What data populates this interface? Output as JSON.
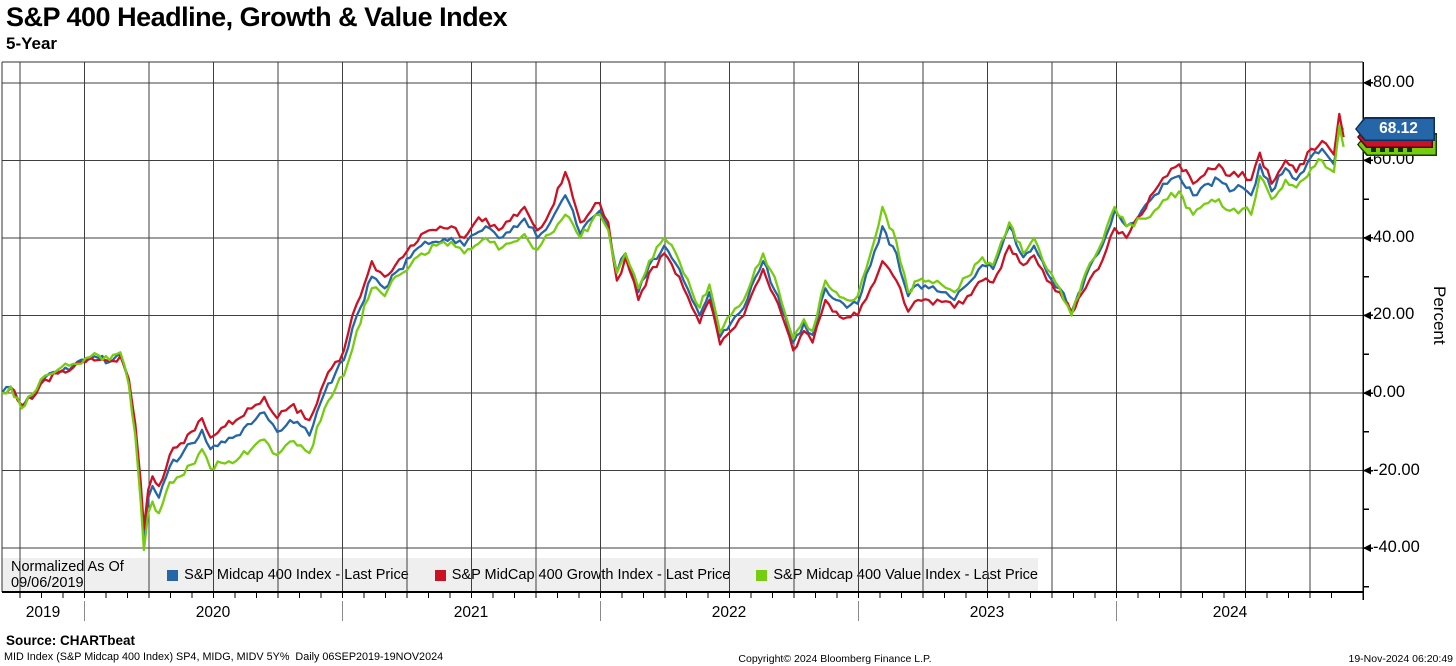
{
  "title": "S&P 400 Headline, Growth & Value Index",
  "subtitle": "5-Year",
  "legend": {
    "normalized_label": "Normalized As Of 09/06/2019",
    "items": [
      {
        "name": "midcap-400",
        "label": "S&P Midcap 400 Index - Last Price",
        "color": "#2566a8"
      },
      {
        "name": "midcap-400-growth",
        "label": "S&P MidCap 400 Growth Index - Last Price",
        "color": "#cb1124"
      },
      {
        "name": "midcap-400-value",
        "label": "S&P Midcap 400 Value Index - Last Price",
        "color": "#76cc0e"
      }
    ]
  },
  "y_axis": {
    "title": "Percent",
    "major_ticks": [
      {
        "value": 80,
        "label": "80.00"
      },
      {
        "value": 60,
        "label": "60.00"
      },
      {
        "value": 40,
        "label": "40.00"
      },
      {
        "value": 20,
        "label": "20.00"
      },
      {
        "value": 0,
        "label": "0.00"
      },
      {
        "value": -20,
        "label": "-20.00"
      },
      {
        "value": -40,
        "label": "-40.00"
      }
    ],
    "minor_tick_values": [
      70,
      50,
      30,
      10,
      -10,
      -30,
      -50
    ],
    "last_price_tag": {
      "label": "68.12",
      "fill": "#2566a8",
      "border": "#0c2f5e",
      "text_color": "#ffffff"
    },
    "obscured_tags": [
      {
        "name": "growth-last-price-tag",
        "fill": "#cb1124",
        "border": "#5c0612"
      },
      {
        "name": "value-last-price-tag",
        "fill": "#76cc0e",
        "border": "#1d3a00"
      }
    ]
  },
  "x_axis": {
    "year_labels": [
      "2019",
      "2020",
      "2021",
      "2022",
      "2023",
      "2024"
    ]
  },
  "footer": {
    "source": "Source: CHARTbeat",
    "details": "MID Index (S&P Midcap 400 Index) SP4, MIDG, MIDV 5Y%  Daily 06SEP2019-19NOV2024",
    "copyright": "Copyright© 2024 Bloomberg Finance L.P.",
    "timestamp": "19-Nov-2024 06:20:49"
  },
  "chart_data": {
    "type": "line",
    "title": "S&P 400 Headline, Growth & Value Index (5-Year)",
    "x_unit": "months since 2019-09-06",
    "x_range_dates": [
      "2019-09-06",
      "2024-11-19"
    ],
    "ylabel": "Percent",
    "ylim": [
      -51,
      85
    ],
    "grid": {
      "vertical": "quarterly",
      "horizontal_step": 20
    },
    "legend_position": "bottom-left",
    "t_months": [
      0,
      0.4,
      0.9,
      1.4,
      2,
      2.6,
      3.3,
      3.9,
      4.5,
      5,
      5.5,
      5.9,
      6.2,
      6.45,
      6.6,
      6.8,
      7,
      7.3,
      7.8,
      8.3,
      8.8,
      9.3,
      9.7,
      10.2,
      10.9,
      11.6,
      12.2,
      12.8,
      13.4,
      13.9,
      14.3,
      15,
      15.5,
      15.9,
      16.5,
      17.2,
      17.8,
      18.3,
      19,
      19.5,
      20.2,
      20.9,
      21.5,
      22,
      22.5,
      23.1,
      23.8,
      24.3,
      24.9,
      25.5,
      26.2,
      26.9,
      27.4,
      27.8,
      28.2,
      28.6,
      29,
      29.6,
      30.1,
      30.8,
      31.5,
      32.1,
      32.45,
      32.9,
      33.4,
      33.9,
      34.5,
      35.4,
      36.1,
      36.8,
      37.3,
      37.7,
      38.3,
      38.8,
      39.3,
      39.8,
      40.4,
      40.95,
      41.6,
      42.15,
      42.6,
      43.1,
      43.7,
      44.3,
      44.9,
      45.6,
      46.1,
      46.85,
      47.5,
      48,
      48.6,
      49.2,
      49.75,
      50.4,
      51,
      51.75,
      52.3,
      53,
      53.6,
      54.2,
      54.75,
      55.4,
      56.1,
      56.6,
      57.1,
      57.7,
      58.1,
      58.5,
      59.05,
      59.7,
      60.2,
      60.9,
      61.4,
      61.95,
      62.2,
      62.4
    ],
    "series": [
      {
        "name": "S&P Midcap 400 Index - Last Price",
        "color": "#2566a8",
        "last_price": 68.12,
        "values": [
          0,
          1.5,
          -3.5,
          -1,
          4,
          5.5,
          7,
          8.5,
          9,
          8,
          10,
          3,
          -9,
          -25,
          -37,
          -27,
          -24,
          -27,
          -19,
          -16.5,
          -13,
          -9.5,
          -14.5,
          -12.5,
          -11,
          -8,
          -5,
          -10,
          -7,
          -8.5,
          -11,
          0,
          5,
          8.5,
          20,
          30,
          27,
          31,
          35,
          38,
          39,
          40,
          38,
          41,
          43,
          40,
          43,
          45,
          40,
          44,
          51,
          41,
          45,
          47,
          43,
          31,
          36,
          26,
          33,
          38,
          32,
          24,
          20,
          26,
          14.5,
          18,
          22,
          34,
          25,
          13,
          18,
          15,
          27,
          24,
          22,
          23,
          33,
          43,
          36,
          25,
          28,
          27,
          26,
          24,
          28,
          33,
          32,
          43,
          35,
          38,
          31,
          27,
          21,
          30,
          36,
          47,
          43,
          47,
          51,
          54,
          56,
          51,
          54,
          55,
          52,
          53,
          51,
          59,
          52,
          58,
          55,
          61,
          63,
          59,
          68,
          68.12
        ]
      },
      {
        "name": "S&P MidCap 400 Growth Index - Last Price",
        "color": "#cb1124",
        "values": [
          0,
          1.3,
          -3,
          -1.5,
          3.5,
          5,
          6.5,
          8,
          8.5,
          8.2,
          9.5,
          3.5,
          -8,
          -23,
          -35,
          -25,
          -21.5,
          -24,
          -16,
          -13,
          -10,
          -6.5,
          -11.5,
          -9,
          -7,
          -4,
          -1,
          -6.5,
          -3.5,
          -4.5,
          -7,
          3,
          8,
          11,
          23,
          34,
          30,
          33,
          38,
          41,
          42,
          43,
          40,
          44,
          45,
          42,
          46,
          48,
          42,
          47,
          57,
          44,
          47,
          49,
          44,
          29,
          35,
          24,
          31,
          36,
          30,
          22,
          18,
          24,
          12.5,
          16,
          20,
          32,
          23,
          11,
          16,
          13,
          24,
          21,
          19.5,
          20,
          27,
          34,
          29,
          21,
          24,
          24,
          23.5,
          22,
          25,
          29,
          28.5,
          38,
          33,
          35.5,
          29,
          26,
          20.5,
          27,
          32,
          42.5,
          40,
          46,
          52,
          56,
          59,
          54,
          58,
          59,
          56,
          57,
          55,
          62,
          54,
          60,
          57,
          63,
          65,
          61.5,
          72,
          66
        ]
      },
      {
        "name": "S&P Midcap 400 Value Index - Last Price",
        "color": "#76cc0e",
        "values": [
          0,
          1.7,
          -4,
          -0.5,
          4.5,
          6,
          7.5,
          9,
          9.7,
          8.5,
          10.5,
          2,
          -11,
          -28,
          -40.5,
          -31,
          -28,
          -31,
          -23,
          -21.5,
          -18.5,
          -14.5,
          -19.5,
          -18,
          -17.5,
          -14.5,
          -12,
          -16,
          -12.5,
          -13.5,
          -15.5,
          -4,
          1,
          4.5,
          16,
          27,
          25,
          30,
          33,
          36,
          38,
          39,
          36,
          38,
          40,
          37,
          39,
          41,
          37,
          41,
          46,
          40,
          44,
          46,
          42,
          31,
          36,
          27,
          34,
          40,
          34,
          26,
          22,
          28,
          15.5,
          20,
          24,
          36,
          27,
          14,
          19,
          16,
          29,
          26,
          24,
          25,
          36,
          48,
          39,
          26,
          29,
          29,
          28,
          26,
          30,
          35,
          33,
          44,
          36,
          40,
          32,
          27,
          20,
          31,
          37,
          48,
          43,
          45,
          47,
          50,
          52,
          46,
          49,
          50,
          47,
          47.5,
          46,
          56,
          50,
          55,
          53,
          58,
          60,
          57,
          69,
          63.5
        ]
      }
    ]
  }
}
